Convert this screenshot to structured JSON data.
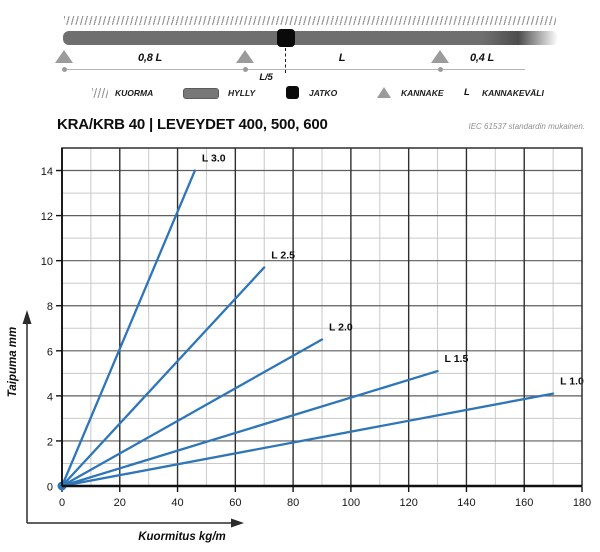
{
  "header": {
    "title": "KRA/KRB 40 | LEVEYDET 400, 500, 600",
    "standard_note": "IEC 61537 standardin mukainen."
  },
  "schematic": {
    "span_left": "0,8 L",
    "joint_offset": "L/5",
    "span_mid": "L",
    "span_right": "0,4 L"
  },
  "legend": {
    "items": [
      {
        "icon": "hatch",
        "label": "KUORMA"
      },
      {
        "icon": "beam",
        "label": "HYLLY"
      },
      {
        "icon": "joint",
        "label": "JATKO"
      },
      {
        "icon": "support-triangle",
        "label": "KANNAKE"
      },
      {
        "icon": "letter-L",
        "symbol": "L",
        "label": "KANNAKEVÄLI"
      }
    ]
  },
  "chart_data": {
    "type": "line",
    "title": "",
    "xlabel": "Kuormitus kg/m",
    "ylabel": "Taipuma mm",
    "xlim": [
      0,
      180
    ],
    "ylim": [
      0,
      15
    ],
    "x_tick_step": 20,
    "x_minor_step": 10,
    "y_tick_step": 2,
    "y_minor_step": 1,
    "x_tick_labels": [
      0,
      20,
      40,
      60,
      80,
      100,
      120,
      140,
      160,
      180
    ],
    "y_tick_labels": [
      0,
      2,
      4,
      6,
      8,
      10,
      12,
      14
    ],
    "grid": "major and minor, on",
    "legend_position": "inline labels at line ends",
    "line_color": "#2e76b8",
    "series": [
      {
        "name": "L 3.0",
        "x": [
          0,
          46
        ],
        "y": [
          0,
          14
        ]
      },
      {
        "name": "L 2.5",
        "x": [
          0,
          70
        ],
        "y": [
          0,
          9.7
        ]
      },
      {
        "name": "L 2.0",
        "x": [
          0,
          90
        ],
        "y": [
          0,
          6.5
        ]
      },
      {
        "name": "L 1.5",
        "x": [
          0,
          130
        ],
        "y": [
          0,
          5.1
        ]
      },
      {
        "name": "L 1.0",
        "x": [
          0,
          170
        ],
        "y": [
          0,
          4.1
        ]
      }
    ],
    "origin_marker": true
  }
}
